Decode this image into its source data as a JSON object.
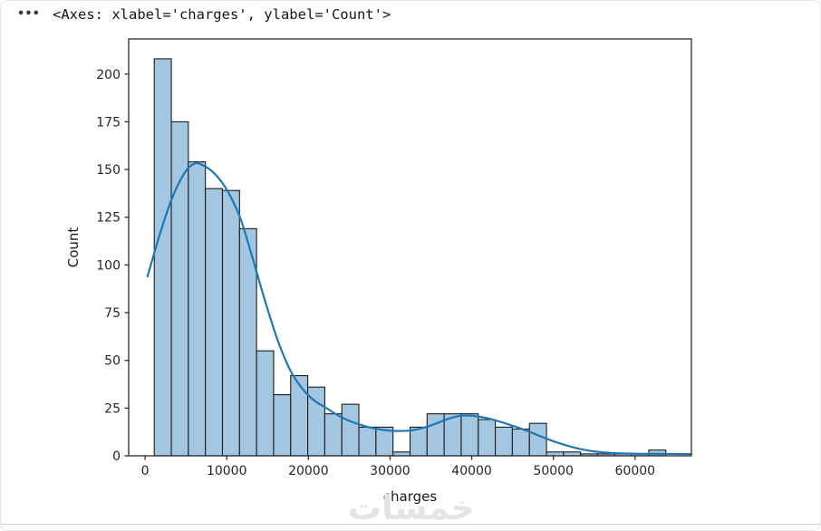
{
  "header": {
    "ellipsis": "•••",
    "repr_text": "<Axes: xlabel='charges', ylabel='Count'>"
  },
  "watermark": {
    "text": "خمسات"
  },
  "chart_data": {
    "type": "histogram",
    "title": "",
    "xlabel": "charges",
    "ylabel": "Count",
    "xlim": [
      -2010.6,
      66902.9
    ],
    "ylim": [
      0,
      218.4
    ],
    "grid": false,
    "legend": null,
    "x_ticks": [
      0,
      10000,
      20000,
      30000,
      40000,
      50000,
      60000
    ],
    "x_tick_labels": [
      "0",
      "10000",
      "20000",
      "30000",
      "40000",
      "50000",
      "60000"
    ],
    "y_ticks": [
      0,
      25,
      50,
      75,
      100,
      125,
      150,
      175,
      200
    ],
    "y_tick_labels": [
      "0",
      "25",
      "50",
      "75",
      "100",
      "125",
      "150",
      "175",
      "200"
    ],
    "series": [
      {
        "name": "charges",
        "bin_start": 1121.87,
        "bin_width": 2088.285,
        "counts": [
          208,
          175,
          154,
          140,
          139,
          119,
          55,
          32,
          42,
          36,
          22,
          27,
          15,
          15,
          2,
          15,
          22,
          22,
          22,
          19,
          15,
          14,
          17,
          2,
          2,
          1,
          1,
          1,
          1,
          3
        ]
      }
    ],
    "kde": [
      [
        300,
        94
      ],
      [
        1800,
        116
      ],
      [
        3300,
        135
      ],
      [
        4800,
        148
      ],
      [
        6000,
        153
      ],
      [
        7200,
        152
      ],
      [
        8700,
        147
      ],
      [
        10200,
        138
      ],
      [
        11700,
        124
      ],
      [
        13200,
        103
      ],
      [
        14700,
        81
      ],
      [
        16200,
        61
      ],
      [
        17700,
        45.5
      ],
      [
        19200,
        35.5
      ],
      [
        20700,
        29
      ],
      [
        22200,
        25
      ],
      [
        23700,
        21
      ],
      [
        25200,
        18
      ],
      [
        26700,
        15.8
      ],
      [
        28200,
        14.2
      ],
      [
        29700,
        13.3
      ],
      [
        31200,
        13.0
      ],
      [
        32700,
        13.4
      ],
      [
        34200,
        14.8
      ],
      [
        35700,
        17
      ],
      [
        37200,
        19.5
      ],
      [
        38700,
        21
      ],
      [
        40200,
        20.9
      ],
      [
        41700,
        19.9
      ],
      [
        43200,
        18.2
      ],
      [
        44700,
        16.2
      ],
      [
        46200,
        14
      ],
      [
        47700,
        11.5
      ],
      [
        49200,
        8.9
      ],
      [
        50700,
        6.6
      ],
      [
        52200,
        4.7
      ],
      [
        53700,
        3.2
      ],
      [
        55200,
        2.2
      ],
      [
        57000,
        1.5
      ],
      [
        59000,
        1.2
      ],
      [
        61000,
        1.05
      ],
      [
        63000,
        1.0
      ],
      [
        65000,
        0.95
      ],
      [
        66800,
        0.9
      ]
    ],
    "colors": {
      "bar_fill": "#a3c7e0",
      "bar_edge": "#1c1c1c",
      "kde_line": "#1f77b4",
      "spine": "#2b2b2b",
      "tick_text": "#262626"
    }
  }
}
